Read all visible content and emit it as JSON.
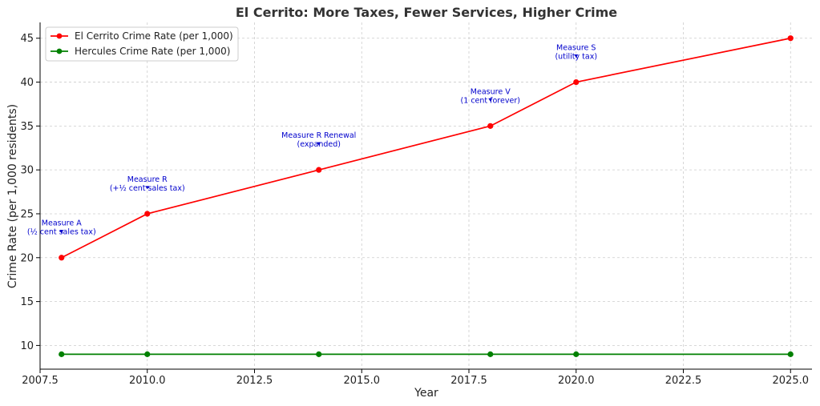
{
  "chart_data": {
    "type": "line",
    "title": "El Cerrito: More Taxes, Fewer Services, Higher Crime",
    "xlabel": "Year",
    "ylabel": "Crime Rate (per 1,000 residents)",
    "xlim": [
      2007.5,
      2025.5
    ],
    "ylim": [
      7.3,
      46.8
    ],
    "xticks": [
      2007.5,
      2010.0,
      2012.5,
      2015.0,
      2017.5,
      2020.0,
      2022.5,
      2025.0
    ],
    "xtick_labels": [
      "2007.5",
      "2010.0",
      "2012.5",
      "2015.0",
      "2017.5",
      "2020.0",
      "2022.5",
      "2025.0"
    ],
    "yticks": [
      10,
      15,
      20,
      25,
      30,
      35,
      40,
      45
    ],
    "ytick_labels": [
      "10",
      "15",
      "20",
      "25",
      "30",
      "35",
      "40",
      "45"
    ],
    "grid": true,
    "legend_position": "top-left",
    "series": [
      {
        "name": "El Cerrito Crime Rate (per 1,000)",
        "color": "#ff0000",
        "x": [
          2008,
          2010,
          2014,
          2018,
          2020,
          2025
        ],
        "y": [
          20,
          25,
          30,
          35,
          40,
          45
        ]
      },
      {
        "name": "Hercules Crime Rate (per 1,000)",
        "color": "#008000",
        "x": [
          2008,
          2010,
          2014,
          2018,
          2020,
          2025
        ],
        "y": [
          9,
          9,
          9,
          9,
          9,
          9
        ]
      }
    ],
    "annotations": [
      {
        "lines": [
          "Measure A",
          "(½ cent sales tax)"
        ],
        "x": 2008,
        "y": 20,
        "text_x": 2008,
        "text_y": 23.2
      },
      {
        "lines": [
          "Measure R",
          "(+½ cent sales tax)"
        ],
        "x": 2010,
        "y": 25,
        "text_x": 2010,
        "text_y": 28.2
      },
      {
        "lines": [
          "Measure R Renewal",
          "(expanded)"
        ],
        "x": 2014,
        "y": 30,
        "text_x": 2014,
        "text_y": 33.2
      },
      {
        "lines": [
          "Measure V",
          "(1 cent forever)"
        ],
        "x": 2018,
        "y": 35,
        "text_x": 2018,
        "text_y": 38.2
      },
      {
        "lines": [
          "Measure S",
          "(utility tax)"
        ],
        "x": 2020,
        "y": 40,
        "text_x": 2020,
        "text_y": 43.2
      }
    ],
    "annotation_color": "#0000cc"
  }
}
